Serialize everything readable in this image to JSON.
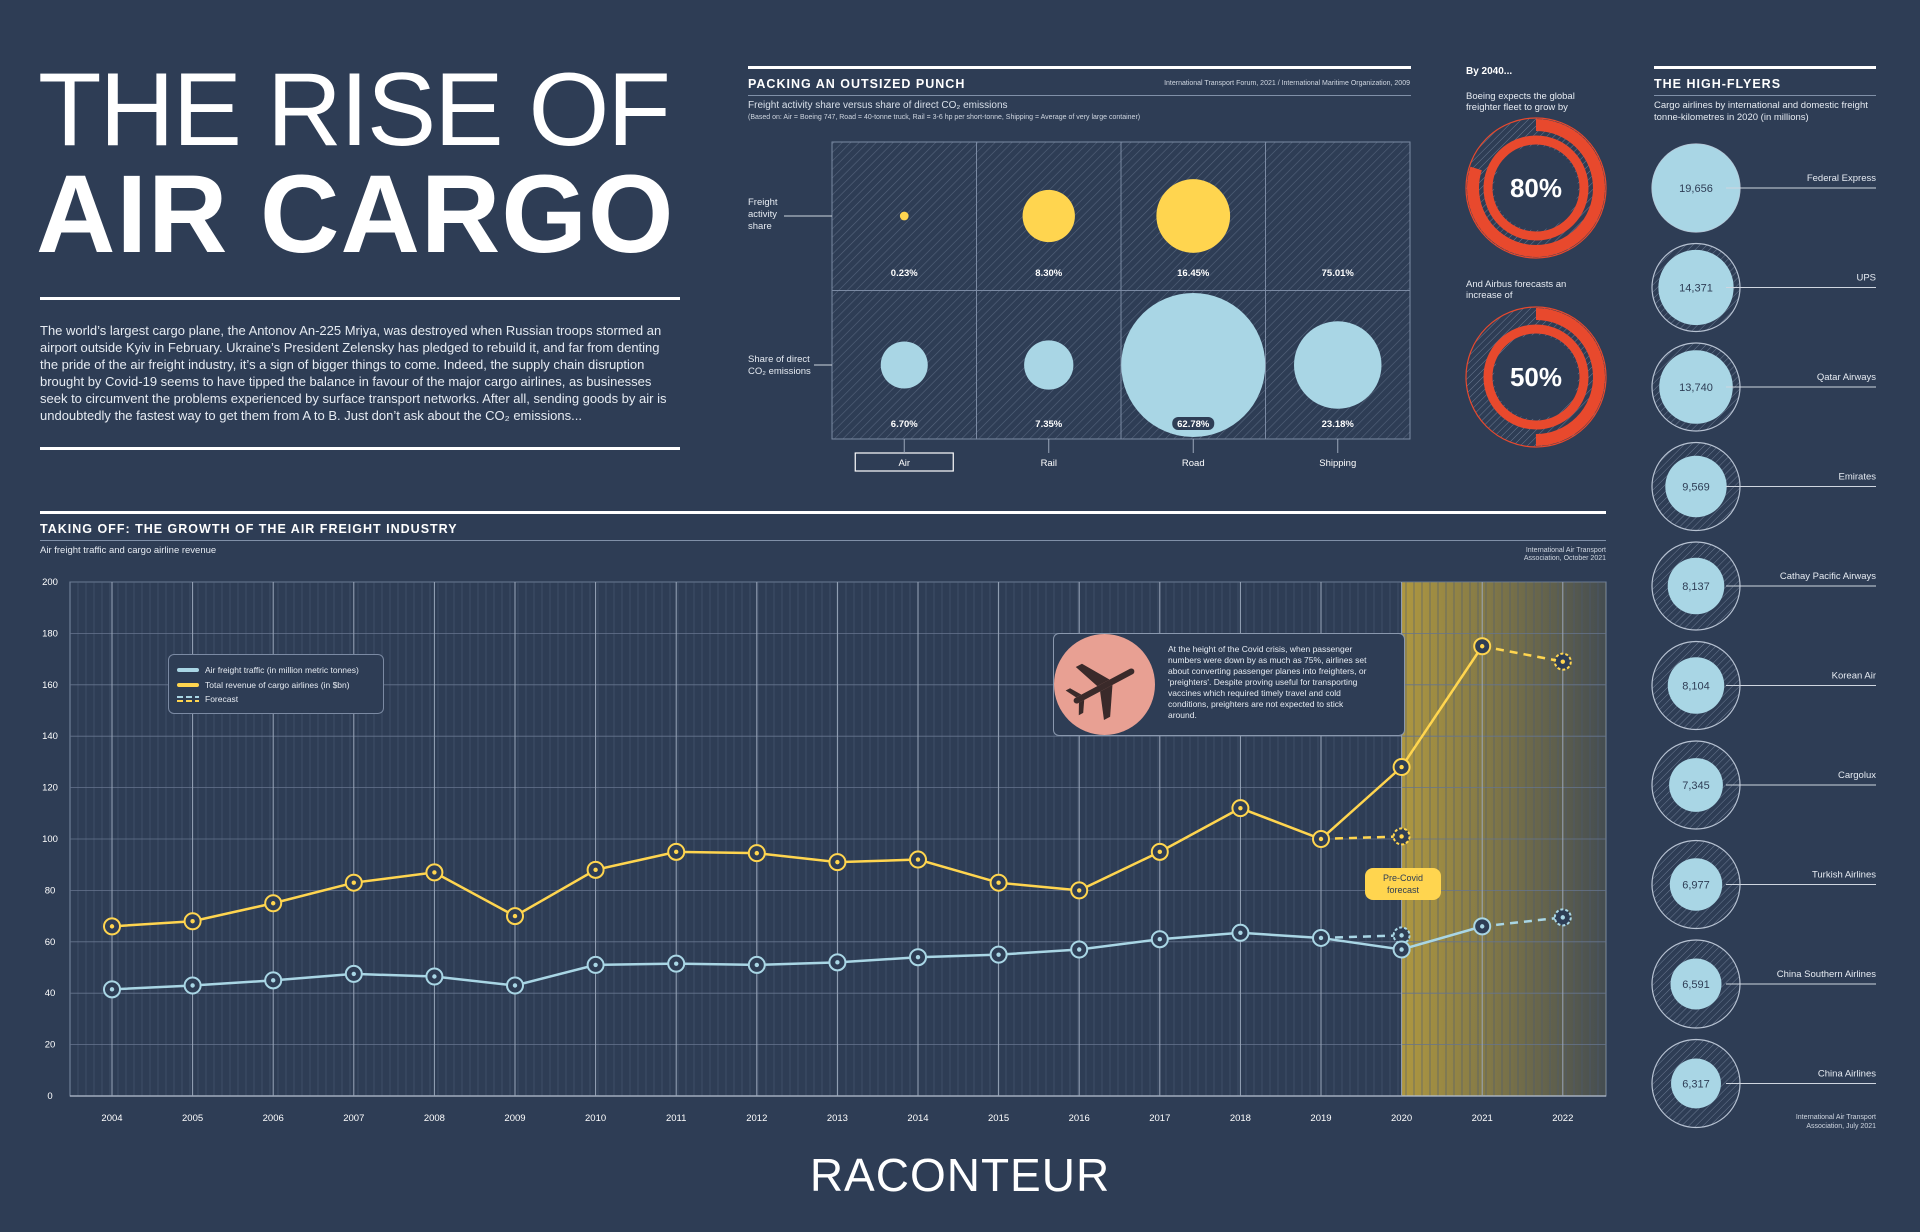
{
  "header": {
    "title_line1": "THE RISE OF",
    "title_line2": "AIR CARGO",
    "intro": "The world’s largest cargo plane, the Antonov An-225 Mriya, was destroyed when Russian troops stormed an airport outside Kyiv in February. Ukraine’s President Zelensky has pledged to rebuild it, and far from denting the pride of the air freight industry, it’s a sign of bigger things to come. Indeed, the supply chain disruption brought by Covid-19 seems to have tipped the balance in favour of the major cargo airlines, as businesses seek to circumvent the problems experienced by surface transport networks. After all, sending goods by air is undoubtedly the fastest way to get them from A to B. Just don’t ask about the CO₂ emissions..."
  },
  "punch": {
    "title": "PACKING AN OUTSIZED PUNCH",
    "source": "International Transport Forum, 2021 / International Maritime Organization, 2009",
    "subtitle": "Freight activity share versus share of direct CO₂ emissions",
    "note": "(Based on: Air = Boeing 747, Road = 40-tonne truck, Rail = 3-6 hp per short-tonne, Shipping = Average of very large container)",
    "row1_label": [
      "Freight",
      "activity",
      "share"
    ],
    "row2_label": [
      "Share of direct",
      "CO₂ emissions"
    ]
  },
  "chart_data": [
    {
      "type": "bubble",
      "title": "PACKING AN OUTSIZED PUNCH",
      "categories": [
        "Air",
        "Rail",
        "Road",
        "Shipping"
      ],
      "series": [
        {
          "name": "Freight activity share",
          "values": [
            0.23,
            8.3,
            16.45,
            75.01
          ],
          "labels": [
            "0.23%",
            "8.30%",
            "16.45%",
            "75.01%"
          ]
        },
        {
          "name": "Share of direct CO₂ emissions",
          "values": [
            6.7,
            7.35,
            62.78,
            23.18
          ],
          "labels": [
            "6.70%",
            "7.35%",
            "62.78%",
            "23.18%"
          ]
        }
      ],
      "selected_category": "Air"
    },
    {
      "type": "donut",
      "header": "By 2040...",
      "items": [
        {
          "caption": "Boeing expects the global freighter fleet to grow by",
          "value": 80,
          "label": "80%"
        },
        {
          "caption": "And Airbus forecasts an increase of",
          "value": 50,
          "label": "50%"
        }
      ]
    },
    {
      "type": "line",
      "title": "TAKING OFF: THE GROWTH OF THE AIR FREIGHT INDUSTRY",
      "subtitle": "Air freight traffic and cargo airline revenue",
      "source": "International Air Transport Association, October 2021",
      "x": [
        "2004",
        "2005",
        "2006",
        "2007",
        "2008",
        "2009",
        "2010",
        "2011",
        "2012",
        "2013",
        "2014",
        "2015",
        "2016",
        "2017",
        "2018",
        "2019",
        "2020",
        "2021",
        "2022"
      ],
      "ylim": [
        0,
        200
      ],
      "yticks": [
        "0",
        "20",
        "40",
        "60",
        "80",
        "100",
        "120",
        "140",
        "160",
        "180",
        "200"
      ],
      "series": [
        {
          "name": "Air freight traffic (in million metric tonnes)",
          "color": "#a9d6e5",
          "values": [
            41.5,
            43,
            45,
            47.5,
            46.5,
            43,
            51,
            51.5,
            51,
            52,
            54,
            55,
            57,
            61,
            63.5,
            61.5,
            57,
            66,
            null
          ]
        },
        {
          "name": "Total revenue of cargo airlines (in $bn)",
          "color": "#ffd54f",
          "values": [
            66,
            68,
            75,
            83,
            87,
            70,
            88,
            95,
            94.5,
            91,
            92,
            83,
            80,
            95,
            112,
            100,
            128,
            175,
            null
          ]
        },
        {
          "name": "Forecast (freight traffic)",
          "color": "#a9d6e5",
          "dashed": true,
          "points": [
            [
              "2019",
              61.5
            ],
            [
              "2020",
              62.5
            ]
          ]
        },
        {
          "name": "Forecast (freight traffic 2022)",
          "color": "#a9d6e5",
          "dashed": true,
          "points": [
            [
              "2021",
              66
            ],
            [
              "2022",
              69.5
            ]
          ]
        },
        {
          "name": "Forecast (revenue)",
          "color": "#ffd54f",
          "dashed": true,
          "points": [
            [
              "2019",
              100
            ],
            [
              "2020",
              101
            ]
          ]
        },
        {
          "name": "Forecast (revenue 2022)",
          "color": "#ffd54f",
          "dashed": true,
          "points": [
            [
              "2021",
              175
            ],
            [
              "2022",
              169
            ]
          ]
        }
      ],
      "legend": [
        "Air freight traffic (in million metric tonnes)",
        "Total revenue of cargo airlines (in $bn)",
        "Forecast"
      ],
      "highlight_from": "2020",
      "annotations": [
        {
          "text": "Pre-Covid forecast"
        },
        {
          "text": "At the height of the Covid crisis, when passenger numbers were down by as much as 75%, airlines set about converting passenger planes into freighters, or 'preighters'. Despite proving useful for transporting vaccines which required timely travel and cold conditions, preighters are not expected to stick around."
        }
      ]
    },
    {
      "type": "bubble-list",
      "title": "THE HIGH-FLYERS",
      "subtitle": "Cargo airlines by international and domestic freight tonne-kilometres in 2020 (in millions)",
      "source": "International Air Transport Association, July 2021",
      "categories": [
        "Federal Express",
        "UPS",
        "Qatar Airways",
        "Emirates",
        "Cathay Pacific Airways",
        "Korean Air",
        "Cargolux",
        "Turkish Airlines",
        "China Southern Airlines",
        "China Airlines"
      ],
      "values": [
        19656,
        14371,
        13740,
        9569,
        8137,
        8104,
        7345,
        6977,
        6591,
        6317
      ],
      "labels": [
        "19,656",
        "14,371",
        "13,740",
        "9,569",
        "8,137",
        "8,104",
        "7,345",
        "6,977",
        "6,591",
        "6,317"
      ]
    }
  ],
  "growth_header": {
    "title": "TAKING OFF: THE GROWTH OF THE AIR FREIGHT INDUSTRY",
    "subtitle": "Air freight traffic and cargo airline revenue",
    "source_1": "International Air Transport",
    "source_2": "Association, October 2021",
    "legend_1": "Air freight traffic (in million metric tonnes)",
    "legend_2": "Total revenue of cargo airlines (in $bn)",
    "legend_3": "Forecast",
    "precovid_1": "Pre-Covid",
    "precovid_2": "forecast",
    "callout": "At the height of the Covid crisis, when passenger numbers were down by as much as 75%, airlines set about converting passenger planes into freighters, or 'preighters'. Despite proving useful for transporting vaccines which required timely travel and cold conditions, preighters are not expected to stick around."
  },
  "forecast": {
    "header": "By 2040...",
    "boeing_1": "Boeing expects the global",
    "boeing_2": "freighter fleet to grow by",
    "airbus_1": "And Airbus forecasts an",
    "airbus_2": "increase of"
  },
  "highflyers": {
    "title": "THE HIGH-FLYERS",
    "subtitle_1": "Cargo airlines by international and domestic freight",
    "subtitle_2": "tonne-kilometres in 2020 (in millions)",
    "source_1": "International Air Transport",
    "source_2": "Association, July 2021"
  },
  "brand": "RACONTEUR",
  "colors": {
    "background": "#2e3d55",
    "yellow": "#ffd54f",
    "blue": "#a9d6e5",
    "red": "#e8492d"
  }
}
